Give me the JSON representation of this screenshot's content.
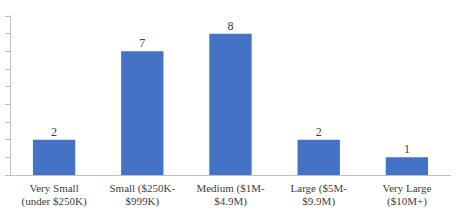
{
  "chart_data": {
    "type": "bar",
    "categories": [
      "Very Small\n(under $250K)",
      "Small ($250K-\n$999K)",
      "Medium ($1M-\n$4.9M)",
      "Large ($5M-\n$9.9M)",
      "Very Large\n($10M+)"
    ],
    "values": [
      2,
      7,
      8,
      2,
      1
    ],
    "color": "#4472c4",
    "ylim": [
      0,
      9
    ],
    "yticks": [
      0,
      1,
      2,
      3,
      4,
      5,
      6,
      7,
      8,
      9
    ],
    "grid": false,
    "data_labels": true,
    "tick_labels": "x"
  }
}
